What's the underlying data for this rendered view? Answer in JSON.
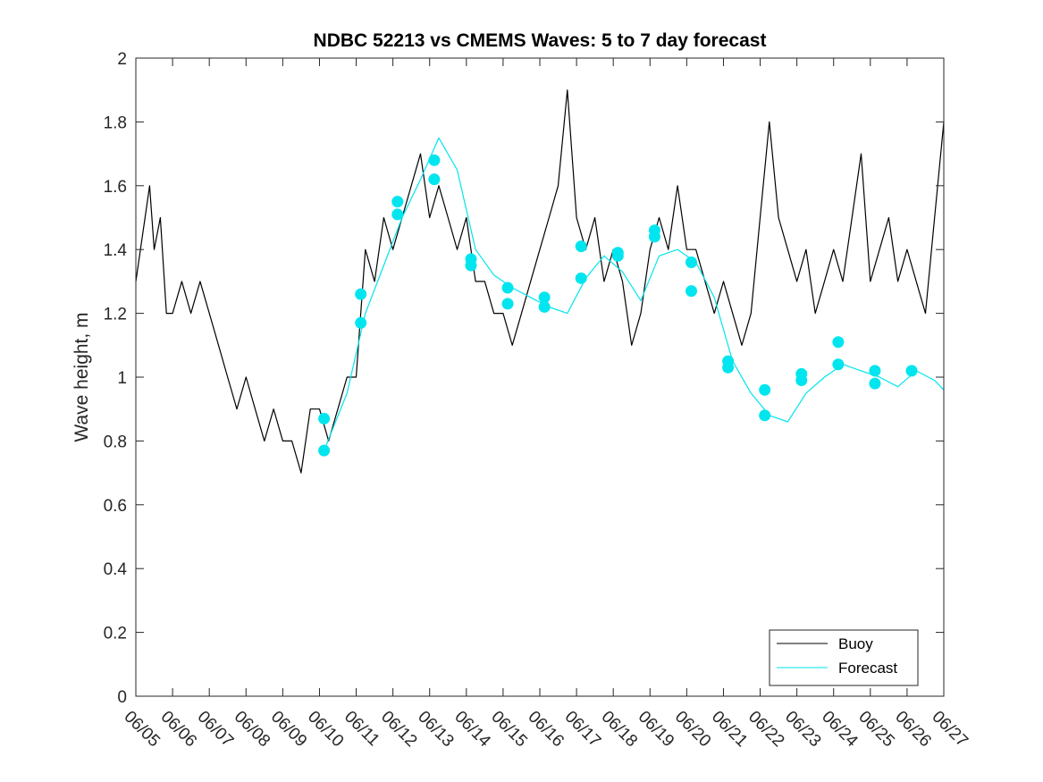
{
  "chart_data": {
    "type": "line",
    "title": "NDBC 52213 vs CMEMS Waves: 5 to 7 day forecast",
    "xlabel": "",
    "ylabel": "Wave height, m",
    "x_tick_labels": [
      "06/05",
      "06/06",
      "06/07",
      "06/08",
      "06/09",
      "06/10",
      "06/11",
      "06/12",
      "06/13",
      "06/14",
      "06/15",
      "06/16",
      "06/17",
      "06/18",
      "06/19",
      "06/20",
      "06/21",
      "06/22",
      "06/23",
      "06/24",
      "06/25",
      "06/26",
      "06/27"
    ],
    "y_tick_labels": [
      "0",
      "0.2",
      "0.4",
      "0.6",
      "0.8",
      "1",
      "1.2",
      "1.4",
      "1.6",
      "1.8",
      "2"
    ],
    "xlim": [
      "06/05",
      "06/27"
    ],
    "ylim": [
      0,
      2
    ],
    "grid": false,
    "legend_position": "bottom-right",
    "colors": {
      "buoy": "#000000",
      "forecast": "#00e5ee",
      "axes": "#262626"
    },
    "series": [
      {
        "name": "Buoy",
        "x": [
          "06/05 00:00",
          "06/05 06:00",
          "06/05 09:00",
          "06/05 12:00",
          "06/05 16:00",
          "06/05 20:00",
          "06/06 00:00",
          "06/06 06:00",
          "06/06 12:00",
          "06/06 18:00",
          "06/07 00:00",
          "06/07 06:00",
          "06/07 12:00",
          "06/07 18:00",
          "06/08 00:00",
          "06/08 06:00",
          "06/08 12:00",
          "06/08 18:00",
          "06/09 00:00",
          "06/09 06:00",
          "06/09 12:00",
          "06/09 18:00",
          "06/10 00:00",
          "06/10 06:00",
          "06/10 12:00",
          "06/10 18:00",
          "06/11 00:00",
          "06/11 06:00",
          "06/11 12:00",
          "06/11 18:00",
          "06/12 00:00",
          "06/12 06:00",
          "06/12 12:00",
          "06/12 18:00",
          "06/13 00:00",
          "06/13 06:00",
          "06/13 12:00",
          "06/13 18:00",
          "06/14 00:00",
          "06/14 06:00",
          "06/14 12:00",
          "06/14 18:00",
          "06/15 00:00",
          "06/15 06:00",
          "06/15 12:00",
          "06/15 18:00",
          "06/16 00:00",
          "06/16 06:00",
          "06/16 12:00",
          "06/16 18:00",
          "06/17 00:00",
          "06/17 06:00",
          "06/17 12:00",
          "06/17 18:00",
          "06/18 00:00",
          "06/18 06:00",
          "06/18 12:00",
          "06/18 18:00",
          "06/19 00:00",
          "06/19 06:00",
          "06/19 12:00",
          "06/19 18:00",
          "06/20 00:00",
          "06/20 06:00",
          "06/20 12:00",
          "06/20 18:00",
          "06/21 00:00",
          "06/21 06:00",
          "06/21 12:00",
          "06/21 18:00",
          "06/22 00:00",
          "06/22 06:00",
          "06/22 12:00",
          "06/22 18:00",
          "06/23 00:00",
          "06/23 06:00",
          "06/23 12:00",
          "06/23 18:00",
          "06/24 00:00",
          "06/24 06:00",
          "06/24 12:00",
          "06/24 18:00",
          "06/25 00:00",
          "06/25 06:00",
          "06/25 12:00",
          "06/25 18:00",
          "06/26 00:00",
          "06/26 06:00",
          "06/26 12:00",
          "06/26 18:00",
          "06/27 00:00"
        ],
        "y": [
          1.3,
          1.5,
          1.6,
          1.4,
          1.5,
          1.2,
          1.2,
          1.3,
          1.2,
          1.3,
          1.2,
          1.1,
          1.0,
          0.9,
          1.0,
          0.9,
          0.8,
          0.9,
          0.8,
          0.8,
          0.7,
          0.9,
          0.9,
          0.8,
          0.9,
          1.0,
          1.0,
          1.4,
          1.3,
          1.5,
          1.4,
          1.5,
          1.6,
          1.7,
          1.5,
          1.6,
          1.5,
          1.4,
          1.5,
          1.3,
          1.3,
          1.2,
          1.2,
          1.1,
          1.2,
          1.3,
          1.4,
          1.5,
          1.6,
          1.9,
          1.5,
          1.4,
          1.5,
          1.3,
          1.4,
          1.3,
          1.1,
          1.2,
          1.4,
          1.5,
          1.4,
          1.6,
          1.4,
          1.4,
          1.3,
          1.2,
          1.3,
          1.2,
          1.1,
          1.2,
          1.5,
          1.8,
          1.5,
          1.4,
          1.3,
          1.4,
          1.2,
          1.3,
          1.4,
          1.3,
          1.5,
          1.7,
          1.3,
          1.4,
          1.5,
          1.3,
          1.4,
          1.3,
          1.2,
          1.5,
          1.8
        ]
      },
      {
        "name": "Forecast",
        "x": [
          "06/10 03:00",
          "06/10 18:00",
          "06/11 06:00",
          "06/11 18:00",
          "06/12 06:00",
          "06/12 18:00",
          "06/13 06:00",
          "06/13 18:00",
          "06/14 06:00",
          "06/14 18:00",
          "06/15 06:00",
          "06/15 18:00",
          "06/16 06:00",
          "06/16 18:00",
          "06/17 06:00",
          "06/17 18:00",
          "06/18 06:00",
          "06/18 18:00",
          "06/19 06:00",
          "06/19 18:00",
          "06/20 06:00",
          "06/20 18:00",
          "06/21 06:00",
          "06/21 18:00",
          "06/22 06:00",
          "06/22 18:00",
          "06/23 06:00",
          "06/23 18:00",
          "06/24 06:00",
          "06/24 18:00",
          "06/25 06:00",
          "06/25 18:00",
          "06/26 06:00",
          "06/26 18:00",
          "06/27 00:00"
        ],
        "y": [
          0.77,
          0.95,
          1.2,
          1.35,
          1.5,
          1.62,
          1.75,
          1.65,
          1.4,
          1.32,
          1.28,
          1.25,
          1.22,
          1.2,
          1.31,
          1.38,
          1.33,
          1.24,
          1.38,
          1.4,
          1.36,
          1.25,
          1.05,
          0.95,
          0.88,
          0.86,
          0.95,
          1.0,
          1.04,
          1.02,
          1.0,
          0.97,
          1.02,
          0.99,
          0.96
        ]
      }
    ],
    "markers": [
      {
        "x": "06/10 03:00",
        "y": 0.77
      },
      {
        "x": "06/10 03:00",
        "y": 0.87
      },
      {
        "x": "06/11 03:00",
        "y": 1.17
      },
      {
        "x": "06/11 03:00",
        "y": 1.26
      },
      {
        "x": "06/12 03:00",
        "y": 1.51
      },
      {
        "x": "06/12 03:00",
        "y": 1.55
      },
      {
        "x": "06/13 03:00",
        "y": 1.62
      },
      {
        "x": "06/13 03:00",
        "y": 1.68
      },
      {
        "x": "06/14 03:00",
        "y": 1.35
      },
      {
        "x": "06/14 03:00",
        "y": 1.37
      },
      {
        "x": "06/15 03:00",
        "y": 1.23
      },
      {
        "x": "06/15 03:00",
        "y": 1.28
      },
      {
        "x": "06/16 03:00",
        "y": 1.22
      },
      {
        "x": "06/16 03:00",
        "y": 1.25
      },
      {
        "x": "06/17 03:00",
        "y": 1.31
      },
      {
        "x": "06/17 03:00",
        "y": 1.41
      },
      {
        "x": "06/18 03:00",
        "y": 1.38
      },
      {
        "x": "06/18 03:00",
        "y": 1.39
      },
      {
        "x": "06/19 03:00",
        "y": 1.44
      },
      {
        "x": "06/19 03:00",
        "y": 1.46
      },
      {
        "x": "06/20 03:00",
        "y": 1.27
      },
      {
        "x": "06/20 03:00",
        "y": 1.36
      },
      {
        "x": "06/21 03:00",
        "y": 1.03
      },
      {
        "x": "06/21 03:00",
        "y": 1.05
      },
      {
        "x": "06/22 03:00",
        "y": 0.88
      },
      {
        "x": "06/22 03:00",
        "y": 0.96
      },
      {
        "x": "06/23 03:00",
        "y": 0.99
      },
      {
        "x": "06/23 03:00",
        "y": 1.01
      },
      {
        "x": "06/24 03:00",
        "y": 1.04
      },
      {
        "x": "06/24 03:00",
        "y": 1.11
      },
      {
        "x": "06/25 03:00",
        "y": 0.98
      },
      {
        "x": "06/25 03:00",
        "y": 1.02
      },
      {
        "x": "06/26 03:00",
        "y": 1.02
      }
    ]
  }
}
